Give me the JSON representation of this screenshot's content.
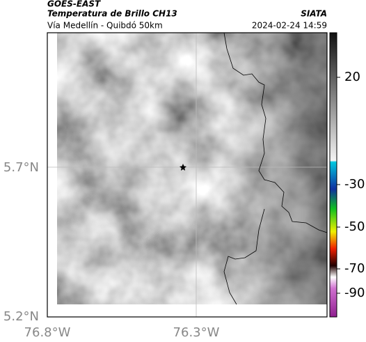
{
  "header": {
    "title": "GOES-EAST",
    "subtitle": "Temperatura de Brillo CH13",
    "region": "Vía Medellín - Quibdó 50km",
    "source": "SIATA",
    "timestamp": "2024-02-24 14:59"
  },
  "map": {
    "lat_labels": [
      "5.7°N",
      "5.2°N"
    ],
    "lon_labels": [
      "76.8°W",
      "76.3°W"
    ]
  },
  "colorbar": {
    "ticks": [
      20,
      -30,
      -50,
      -70,
      -90
    ]
  }
}
